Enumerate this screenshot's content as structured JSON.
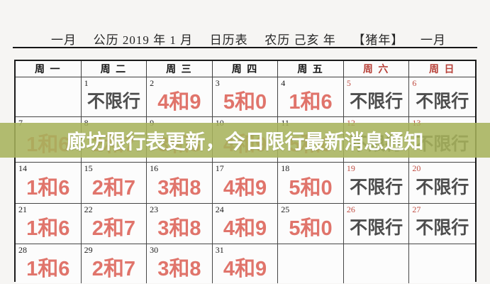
{
  "header": {
    "month_left": "一月",
    "gregorian": "公历 2019 年 1 月",
    "table_label": "日历表",
    "lunar": "农历 己亥 年",
    "zodiac": "【猪年】",
    "month_right": "一月"
  },
  "banner": {
    "text": "廊坊限行表更新，今日限行最新消息通知",
    "background_color": "#a6b25b",
    "text_color": "#ffffff"
  },
  "calendar": {
    "weekday_headers": [
      "周 一",
      "周 二",
      "周 三",
      "周 四",
      "周 五",
      "周 六",
      "周 日"
    ],
    "weeks": [
      [
        {
          "date": "",
          "value": "",
          "kind": "empty"
        },
        {
          "date": "1",
          "value": "不限行",
          "kind": "none"
        },
        {
          "date": "2",
          "value": "4和9",
          "kind": "restricted"
        },
        {
          "date": "3",
          "value": "5和0",
          "kind": "restricted"
        },
        {
          "date": "4",
          "value": "1和6",
          "kind": "restricted"
        },
        {
          "date": "5",
          "value": "不限行",
          "kind": "none"
        },
        {
          "date": "6",
          "value": "不限行",
          "kind": "none"
        }
      ],
      [
        {
          "date": "7",
          "value": "1和6",
          "kind": "restricted"
        },
        {
          "date": "8",
          "value": "2和7",
          "kind": "restricted"
        },
        {
          "date": "9",
          "value": "3和8",
          "kind": "restricted"
        },
        {
          "date": "10",
          "value": "4和9",
          "kind": "restricted"
        },
        {
          "date": "11",
          "value": "5和0",
          "kind": "restricted"
        },
        {
          "date": "12",
          "value": "不限行",
          "kind": "none"
        },
        {
          "date": "13",
          "value": "不限行",
          "kind": "none"
        }
      ],
      [
        {
          "date": "14",
          "value": "1和6",
          "kind": "restricted"
        },
        {
          "date": "15",
          "value": "2和7",
          "kind": "restricted"
        },
        {
          "date": "16",
          "value": "3和8",
          "kind": "restricted"
        },
        {
          "date": "17",
          "value": "4和9",
          "kind": "restricted"
        },
        {
          "date": "18",
          "value": "5和0",
          "kind": "restricted"
        },
        {
          "date": "19",
          "value": "不限行",
          "kind": "none"
        },
        {
          "date": "20",
          "value": "不限行",
          "kind": "none"
        }
      ],
      [
        {
          "date": "21",
          "value": "1和6",
          "kind": "restricted"
        },
        {
          "date": "22",
          "value": "2和7",
          "kind": "restricted"
        },
        {
          "date": "23",
          "value": "3和8",
          "kind": "restricted"
        },
        {
          "date": "24",
          "value": "4和9",
          "kind": "restricted"
        },
        {
          "date": "25",
          "value": "5和0",
          "kind": "restricted"
        },
        {
          "date": "26",
          "value": "不限行",
          "kind": "none"
        },
        {
          "date": "27",
          "value": "不限行",
          "kind": "none"
        }
      ],
      [
        {
          "date": "28",
          "value": "1和6",
          "kind": "restricted"
        },
        {
          "date": "29",
          "value": "2和7",
          "kind": "restricted"
        },
        {
          "date": "30",
          "value": "3和8",
          "kind": "restricted"
        },
        {
          "date": "31",
          "value": "4和9",
          "kind": "restricted"
        },
        {
          "date": "",
          "value": "",
          "kind": "empty"
        },
        {
          "date": "",
          "value": "",
          "kind": "empty"
        },
        {
          "date": "",
          "value": "",
          "kind": "empty"
        }
      ]
    ]
  },
  "colors": {
    "restricted_text": "#e0746b",
    "no_restriction_text": "#4e4e4e",
    "weekend_text": "#b8423a",
    "weekday_text": "#141414",
    "banner_background": "#a6b25b"
  }
}
